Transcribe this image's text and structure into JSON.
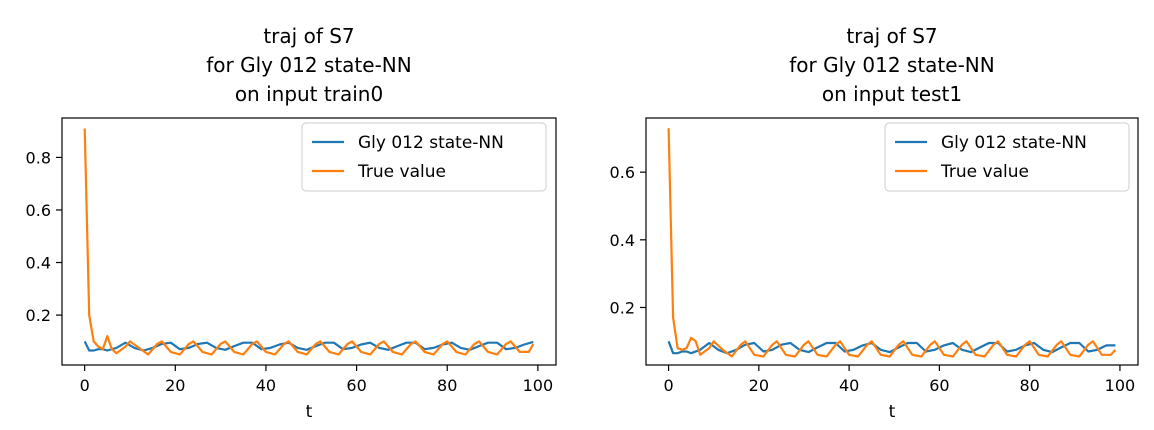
{
  "colors": {
    "series1": "#1f77b4",
    "series2": "#ff7f0e",
    "axis": "#000000",
    "legend_border": "#cccccc"
  },
  "chart_data": [
    {
      "type": "line",
      "title": [
        "traj of S7",
        "for Gly 012 state-NN",
        "on input train0"
      ],
      "xlabel": "t",
      "ylabel": "",
      "xlim": [
        -5,
        104
      ],
      "ylim": [
        0.01,
        0.95
      ],
      "xticks": [
        0,
        20,
        40,
        60,
        80,
        100
      ],
      "xtick_labels": [
        "0",
        "20",
        "40",
        "60",
        "80",
        "100"
      ],
      "yticks": [
        0.2,
        0.4,
        0.6,
        0.8
      ],
      "ytick_labels": [
        "0.2",
        "0.4",
        "0.6",
        "0.8"
      ],
      "grid": false,
      "legend": "upper right",
      "series": [
        {
          "name": "Gly 012 state-NN",
          "x": [
            0,
            1,
            2,
            3,
            4,
            5,
            7,
            9,
            11,
            13,
            15,
            17,
            19,
            21,
            23,
            25,
            27,
            29,
            31,
            33,
            35,
            37,
            39,
            41,
            43,
            45,
            47,
            49,
            51,
            53,
            55,
            57,
            59,
            61,
            63,
            65,
            67,
            69,
            71,
            73,
            75,
            77,
            79,
            81,
            83,
            85,
            87,
            89,
            91,
            93,
            95,
            97,
            99
          ],
          "y": [
            0.1,
            0.065,
            0.065,
            0.07,
            0.07,
            0.065,
            0.075,
            0.095,
            0.075,
            0.065,
            0.075,
            0.09,
            0.095,
            0.07,
            0.075,
            0.09,
            0.095,
            0.075,
            0.068,
            0.082,
            0.095,
            0.095,
            0.07,
            0.075,
            0.088,
            0.095,
            0.075,
            0.068,
            0.082,
            0.095,
            0.095,
            0.07,
            0.075,
            0.088,
            0.095,
            0.075,
            0.068,
            0.082,
            0.095,
            0.095,
            0.07,
            0.075,
            0.088,
            0.095,
            0.075,
            0.068,
            0.082,
            0.095,
            0.095,
            0.07,
            0.075,
            0.088,
            0.098
          ]
        },
        {
          "name": "True value",
          "x": [
            0,
            1,
            2,
            3,
            4,
            5,
            6,
            7,
            9,
            10,
            12,
            14,
            16,
            17,
            19,
            21,
            23,
            24,
            26,
            28,
            30,
            31,
            33,
            35,
            37,
            38,
            40,
            42,
            44,
            45,
            47,
            49,
            51,
            52,
            54,
            56,
            58,
            59,
            61,
            63,
            65,
            66,
            68,
            70,
            72,
            73,
            75,
            77,
            79,
            80,
            82,
            84,
            86,
            87,
            89,
            91,
            93,
            94,
            96,
            98,
            99
          ],
          "y": [
            0.91,
            0.2,
            0.1,
            0.08,
            0.07,
            0.12,
            0.07,
            0.055,
            0.08,
            0.1,
            0.075,
            0.05,
            0.09,
            0.1,
            0.06,
            0.05,
            0.09,
            0.1,
            0.06,
            0.05,
            0.09,
            0.1,
            0.06,
            0.05,
            0.09,
            0.1,
            0.06,
            0.05,
            0.09,
            0.1,
            0.06,
            0.05,
            0.09,
            0.1,
            0.06,
            0.05,
            0.09,
            0.1,
            0.06,
            0.05,
            0.09,
            0.1,
            0.06,
            0.05,
            0.09,
            0.1,
            0.06,
            0.05,
            0.09,
            0.1,
            0.06,
            0.05,
            0.09,
            0.1,
            0.06,
            0.05,
            0.09,
            0.1,
            0.06,
            0.06,
            0.09
          ]
        }
      ]
    },
    {
      "type": "line",
      "title": [
        "traj of S7",
        "for Gly 012 state-NN",
        "on input test1"
      ],
      "xlabel": "t",
      "ylabel": "",
      "xlim": [
        -5,
        104
      ],
      "ylim": [
        0.03,
        0.76
      ],
      "xticks": [
        0,
        20,
        40,
        60,
        80,
        100
      ],
      "xtick_labels": [
        "0",
        "20",
        "40",
        "60",
        "80",
        "100"
      ],
      "yticks": [
        0.2,
        0.4,
        0.6
      ],
      "ytick_labels": [
        "0.2",
        "0.4",
        "0.6"
      ],
      "grid": false,
      "legend": "upper right",
      "series": [
        {
          "name": "Gly 012 state-NN",
          "x": [
            0,
            1,
            2,
            3,
            4,
            5,
            7,
            9,
            11,
            13,
            15,
            17,
            19,
            21,
            23,
            25,
            27,
            29,
            31,
            33,
            35,
            37,
            39,
            41,
            43,
            45,
            47,
            49,
            51,
            53,
            55,
            57,
            59,
            61,
            63,
            65,
            67,
            69,
            71,
            73,
            75,
            77,
            79,
            81,
            83,
            85,
            87,
            89,
            91,
            93,
            95,
            97,
            99
          ],
          "y": [
            0.1,
            0.065,
            0.065,
            0.07,
            0.07,
            0.065,
            0.075,
            0.095,
            0.075,
            0.065,
            0.075,
            0.09,
            0.095,
            0.07,
            0.075,
            0.09,
            0.095,
            0.075,
            0.068,
            0.082,
            0.095,
            0.095,
            0.07,
            0.075,
            0.088,
            0.095,
            0.075,
            0.068,
            0.082,
            0.095,
            0.095,
            0.07,
            0.075,
            0.088,
            0.095,
            0.075,
            0.068,
            0.082,
            0.095,
            0.095,
            0.07,
            0.075,
            0.088,
            0.095,
            0.075,
            0.068,
            0.082,
            0.095,
            0.095,
            0.07,
            0.075,
            0.088,
            0.088
          ]
        },
        {
          "name": "True value",
          "x": [
            0,
            1,
            2,
            3,
            4,
            5,
            6,
            7,
            9,
            10,
            12,
            14,
            16,
            17,
            19,
            21,
            23,
            24,
            26,
            28,
            30,
            31,
            33,
            35,
            37,
            38,
            40,
            42,
            44,
            45,
            47,
            49,
            51,
            52,
            54,
            56,
            58,
            59,
            61,
            63,
            65,
            66,
            68,
            70,
            72,
            73,
            75,
            77,
            79,
            80,
            82,
            84,
            86,
            87,
            89,
            91,
            93,
            94,
            96,
            98,
            99
          ],
          "y": [
            0.73,
            0.17,
            0.08,
            0.075,
            0.08,
            0.11,
            0.1,
            0.06,
            0.08,
            0.1,
            0.075,
            0.055,
            0.09,
            0.1,
            0.06,
            0.055,
            0.09,
            0.1,
            0.06,
            0.055,
            0.09,
            0.1,
            0.06,
            0.055,
            0.09,
            0.1,
            0.06,
            0.055,
            0.09,
            0.1,
            0.06,
            0.055,
            0.09,
            0.1,
            0.06,
            0.055,
            0.09,
            0.1,
            0.06,
            0.055,
            0.09,
            0.1,
            0.06,
            0.055,
            0.09,
            0.1,
            0.06,
            0.055,
            0.09,
            0.1,
            0.06,
            0.055,
            0.09,
            0.1,
            0.06,
            0.055,
            0.09,
            0.1,
            0.06,
            0.06,
            0.075
          ]
        }
      ]
    }
  ]
}
